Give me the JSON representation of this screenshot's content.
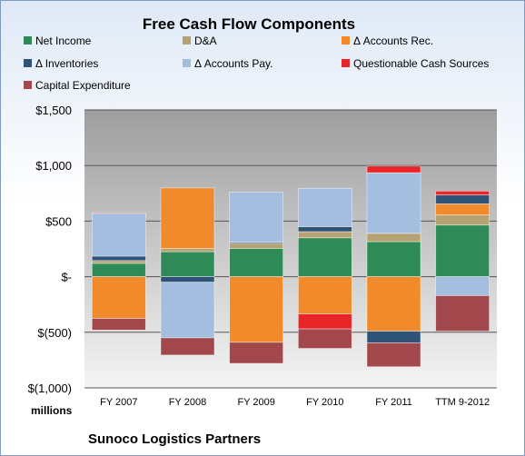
{
  "chart_data": {
    "type": "bar",
    "stacked": true,
    "title": "Free Cash Flow Components",
    "footer": "Sunoco Logistics Partners",
    "y_unit_label": "millions",
    "categories": [
      "FY 2007",
      "FY 2008",
      "FY 2009",
      "FY 2010",
      "FY 2011",
      "TTM 9-2012"
    ],
    "y_ticks": [
      {
        "value": 1500,
        "label": "$1,500"
      },
      {
        "value": 1000,
        "label": "$1,000"
      },
      {
        "value": 500,
        "label": "$500"
      },
      {
        "value": 0,
        "label": "$-"
      },
      {
        "value": -500,
        "label": "$(500)"
      },
      {
        "value": -1000,
        "label": "$(1,000)"
      }
    ],
    "ylim": [
      -1000,
      1500
    ],
    "grid": true,
    "legend_position": "top",
    "series": [
      {
        "name": "Net Income",
        "color": "#2e8b57",
        "values": [
          120,
          225,
          255,
          350,
          315,
          465
        ]
      },
      {
        "name": "D&A",
        "color": "#b5a272",
        "values": [
          25,
          28,
          45,
          55,
          75,
          90
        ]
      },
      {
        "name": "Δ Accounts Rec.",
        "color": "#f08a2a",
        "values": [
          -375,
          545,
          -590,
          -335,
          -490,
          100
        ]
      },
      {
        "name": "Δ Inventories",
        "color": "#2f5277",
        "values": [
          40,
          -50,
          10,
          45,
          -105,
          80
        ]
      },
      {
        "name": "Δ Accounts Pay.",
        "color": "#a3bedf",
        "values": [
          385,
          -500,
          450,
          345,
          545,
          -170
        ]
      },
      {
        "name": "Questionable Cash Sources",
        "color": "#e8262a",
        "values": [
          5,
          0,
          0,
          -135,
          60,
          35
        ]
      },
      {
        "name": "Capital Expenditure",
        "color": "#a2474c",
        "values": [
          -105,
          -155,
          -190,
          -175,
          -215,
          -320
        ]
      }
    ]
  }
}
